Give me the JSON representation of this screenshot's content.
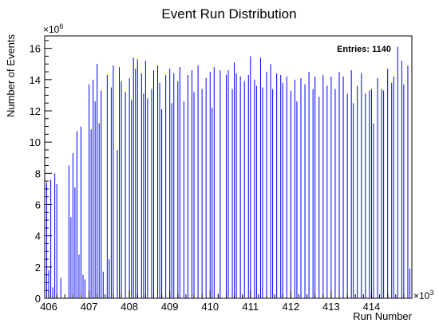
{
  "chart_data": {
    "type": "bar",
    "title": "Event Run Distribution",
    "xlabel": "Run Number",
    "ylabel": "Number of Events",
    "x_multiplier_label": "×10",
    "x_multiplier_exp": "3",
    "y_multiplier_label": "×10",
    "y_multiplier_exp": "6",
    "stats_label": "Entries:",
    "stats_value": "1140",
    "xlim": [
      405.9,
      415.0
    ],
    "ylim": [
      0,
      16.8
    ],
    "x_ticks": [
      406,
      407,
      408,
      409,
      410,
      411,
      412,
      413,
      414
    ],
    "x_tick_labels": [
      "406",
      "407",
      "408",
      "409",
      "410",
      "411",
      "412",
      "413",
      "414"
    ],
    "y_ticks": [
      0,
      2,
      4,
      6,
      8,
      10,
      12,
      14,
      16
    ],
    "y_tick_labels": [
      "0",
      "2",
      "4",
      "6",
      "8",
      "10",
      "12",
      "14",
      "16"
    ],
    "grid": false,
    "series": [
      {
        "color": "#0000ff",
        "x": [
          405.95,
          406.0,
          406.05,
          406.1,
          406.15,
          406.2,
          406.3,
          406.5,
          406.55,
          406.6,
          406.65,
          406.7,
          406.75,
          406.8,
          406.85,
          406.9,
          407.0,
          407.05,
          407.1,
          407.15,
          407.2,
          407.25,
          407.3,
          407.35,
          407.45,
          407.5,
          407.55,
          407.6,
          407.7,
          407.75,
          407.8,
          407.9,
          408.0,
          408.05,
          408.1,
          408.15,
          408.2,
          408.3,
          408.35,
          408.4,
          408.45,
          408.55,
          408.6,
          408.7,
          408.75,
          408.8,
          408.9,
          409.0,
          409.05,
          409.1,
          409.2,
          409.25,
          409.35,
          409.45,
          409.55,
          409.6,
          409.7,
          409.8,
          409.9,
          410.0,
          410.05,
          410.1,
          410.2,
          410.25,
          410.4,
          410.45,
          410.55,
          410.6,
          410.65,
          410.75,
          410.85,
          410.95,
          411.0,
          411.1,
          411.15,
          411.25,
          411.3,
          411.4,
          411.5,
          411.55,
          411.65,
          411.75,
          411.8,
          411.9,
          412.0,
          412.1,
          412.15,
          412.25,
          412.35,
          412.45,
          412.55,
          412.6,
          412.7,
          412.8,
          412.9,
          413.0,
          413.1,
          413.2,
          413.3,
          413.4,
          413.5,
          413.55,
          413.65,
          413.75,
          413.85,
          413.95,
          414.0,
          414.05,
          414.15,
          414.25,
          414.3,
          414.4,
          414.5,
          414.55,
          414.65,
          414.75,
          414.8,
          414.9,
          414.95
        ],
        "values": [
          7.4,
          1.8,
          7.6,
          0.7,
          8.0,
          7.3,
          1.3,
          8.5,
          5.2,
          9.3,
          7.1,
          10.7,
          2.8,
          11.0,
          1.5,
          1.2,
          13.7,
          10.8,
          14.0,
          12.6,
          15.0,
          11.2,
          13.3,
          1.7,
          14.3,
          2.5,
          13.5,
          14.9,
          9.5,
          14.8,
          13.9,
          13.2,
          14.1,
          12.7,
          15.4,
          14.7,
          15.3,
          14.4,
          13.1,
          15.2,
          12.8,
          13.4,
          14.6,
          14.9,
          13.8,
          12.1,
          14.3,
          14.7,
          12.5,
          14.4,
          13.9,
          14.8,
          12.6,
          14.3,
          14.6,
          13.2,
          14.9,
          13.4,
          14.1,
          14.5,
          12.2,
          14.8,
          0.3,
          14.6,
          14.3,
          14.6,
          13.4,
          15.1,
          14.4,
          14.2,
          13.9,
          14.3,
          15.5,
          14.0,
          13.6,
          15.4,
          13.5,
          14.5,
          15.0,
          13.4,
          14.4,
          14.3,
          13.8,
          14.2,
          13.3,
          14.0,
          12.6,
          14.1,
          13.7,
          14.5,
          13.4,
          14.2,
          12.9,
          14.3,
          13.6,
          14.2,
          13.4,
          14.5,
          14.2,
          13.1,
          14.6,
          12.5,
          13.6,
          14.4,
          13.1,
          13.3,
          13.4,
          11.2,
          14.1,
          13.4,
          13.3,
          14.7,
          13.8,
          14.2,
          16.1,
          15.2,
          13.7,
          14.9,
          1.9
        ]
      }
    ]
  }
}
